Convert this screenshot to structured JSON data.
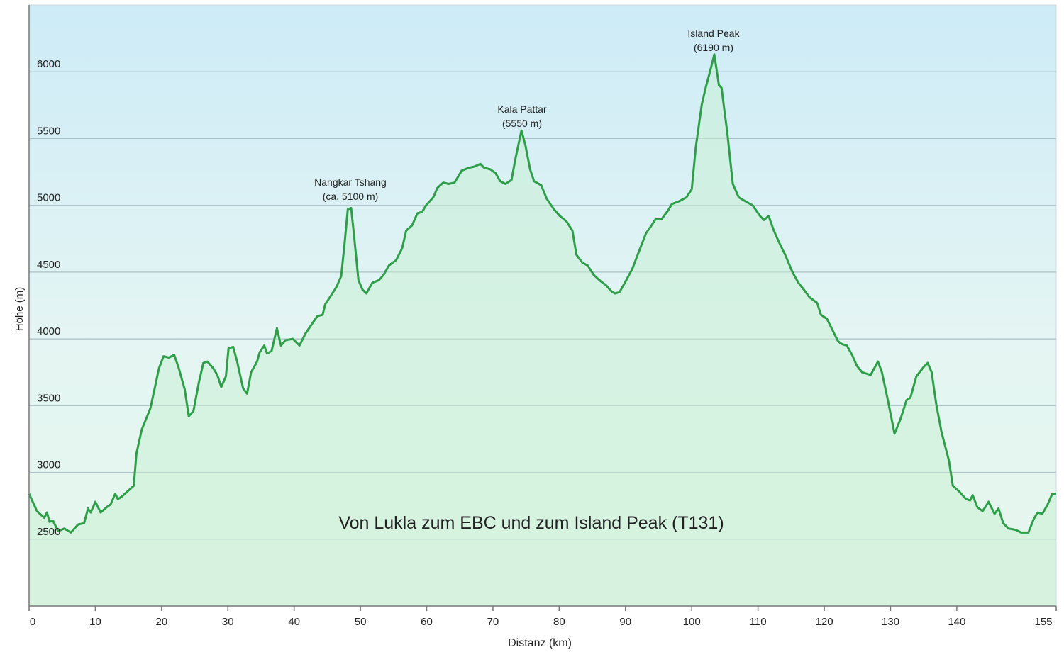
{
  "chart_data": {
    "type": "area",
    "title": "Von Lukla zum EBC und zum Island Peak (T131)",
    "x_label": "Distanz  (km)",
    "y_label": "Höhe (m)",
    "annotations": [
      [
        "Nangkar Tshang",
        "(ca. 5100 m)"
      ],
      [
        "Kala Pattar",
        "(5550 m)"
      ],
      [
        "Island Peak",
        "(6190 m)"
      ]
    ],
    "color": "#2e9e48",
    "fill_color": "#c8efd2",
    "grid": true,
    "xlim": [
      0,
      155
    ],
    "xticks": [
      0,
      10,
      20,
      30,
      40,
      50,
      60,
      70,
      80,
      90,
      100,
      110,
      120,
      130,
      140,
      155
    ],
    "ylim": [
      2000,
      6500
    ],
    "yticks": [
      2500,
      3000,
      3500,
      4000,
      4500,
      5000,
      5500,
      6000
    ],
    "x": [
      0,
      1.2,
      2.3,
      2.7,
      3.1,
      3.6,
      4.4,
      5.3,
      6.3,
      7.4,
      8.3,
      8.9,
      9.3,
      10,
      10.8,
      11.7,
      12.3,
      13,
      13.4,
      14,
      14.9,
      15.8,
      16.2,
      17,
      18.3,
      19,
      19.6,
      20.3,
      21.1,
      21.9,
      22.6,
      23.5,
      24.1,
      24.8,
      25.6,
      26.3,
      26.9,
      27.8,
      28.4,
      29,
      29.7,
      30.1,
      30.8,
      31.4,
      32.3,
      32.9,
      33.5,
      34.4,
      34.8,
      35.5,
      35.9,
      36.6,
      37.4,
      38,
      38.7,
      39.8,
      40.8,
      41.7,
      42.8,
      43.5,
      44.3,
      44.7,
      45.5,
      46.4,
      47.1,
      47.6,
      48.1,
      48.6,
      49,
      49.7,
      50.3,
      50.9,
      51.8,
      52.8,
      53.5,
      54.3,
      55.4,
      56.3,
      56.9,
      57.8,
      58.6,
      59.3,
      59.9,
      61,
      61.6,
      62.5,
      63.3,
      64.2,
      65.3,
      66.3,
      67.2,
      68.1,
      68.7,
      69.6,
      70.4,
      71.1,
      71.9,
      72.8,
      73.4,
      74.3,
      74.9,
      75.6,
      76.2,
      77.3,
      78.1,
      79.2,
      80.1,
      81.1,
      82,
      82.6,
      83.5,
      84.3,
      85.2,
      86.3,
      87.1,
      87.8,
      88.4,
      89.1,
      89.9,
      91,
      92,
      93.1,
      93.8,
      94.6,
      95.5,
      96.4,
      97,
      98.1,
      99.2,
      100,
      100.6,
      101.5,
      102.1,
      102.8,
      103.4,
      104.1,
      104.5,
      105.4,
      106.2,
      107.1,
      108.1,
      109.2,
      110.3,
      110.9,
      111.6,
      112.4,
      113.3,
      114.1,
      115.2,
      116.1,
      116.9,
      117.8,
      118.9,
      119.5,
      120.4,
      121.2,
      122.1,
      122.7,
      123.4,
      124.2,
      124.9,
      125.7,
      127,
      128.1,
      128.7,
      129.6,
      130.6,
      131.5,
      132.4,
      133,
      133.9,
      135,
      135.6,
      136.2,
      136.9,
      137.7,
      138.8,
      139.4,
      140.3,
      141.4,
      142,
      142.4,
      143.1,
      143.9,
      144.8,
      145.7,
      146.3,
      147,
      147.8,
      148.9,
      149.7,
      150.8,
      151.6,
      152.2,
      152.9,
      153.7,
      154.4,
      155
    ],
    "values": [
      2840,
      2710,
      2660,
      2700,
      2630,
      2640,
      2560,
      2580,
      2550,
      2610,
      2620,
      2730,
      2700,
      2780,
      2700,
      2740,
      2760,
      2840,
      2800,
      2820,
      2860,
      2900,
      3140,
      3320,
      3480,
      3640,
      3780,
      3870,
      3860,
      3880,
      3780,
      3620,
      3420,
      3460,
      3670,
      3820,
      3830,
      3780,
      3730,
      3640,
      3720,
      3930,
      3940,
      3830,
      3630,
      3590,
      3750,
      3830,
      3900,
      3950,
      3890,
      3910,
      4080,
      3950,
      3990,
      4000,
      3950,
      4040,
      4120,
      4170,
      4180,
      4260,
      4320,
      4390,
      4470,
      4710,
      4970,
      4980,
      4790,
      4440,
      4370,
      4340,
      4420,
      4440,
      4480,
      4550,
      4590,
      4680,
      4810,
      4850,
      4940,
      4950,
      5000,
      5060,
      5130,
      5170,
      5160,
      5170,
      5260,
      5280,
      5290,
      5310,
      5280,
      5270,
      5240,
      5180,
      5160,
      5190,
      5350,
      5560,
      5450,
      5270,
      5180,
      5150,
      5050,
      4970,
      4920,
      4880,
      4810,
      4630,
      4570,
      4550,
      4480,
      4430,
      4400,
      4360,
      4340,
      4350,
      4420,
      4520,
      4650,
      4790,
      4840,
      4900,
      4900,
      4960,
      5010,
      5030,
      5060,
      5120,
      5430,
      5750,
      5880,
      6010,
      6130,
      5900,
      5880,
      5530,
      5160,
      5060,
      5030,
      5000,
      4920,
      4890,
      4920,
      4810,
      4710,
      4630,
      4500,
      4420,
      4370,
      4310,
      4270,
      4180,
      4150,
      4070,
      3980,
      3960,
      3950,
      3880,
      3800,
      3750,
      3730,
      3830,
      3750,
      3540,
      3290,
      3400,
      3540,
      3560,
      3720,
      3790,
      3820,
      3750,
      3510,
      3300,
      3090,
      2900,
      2860,
      2800,
      2790,
      2830,
      2740,
      2710,
      2780,
      2690,
      2730,
      2620,
      2580,
      2570,
      2550,
      2550,
      2650,
      2700,
      2690,
      2760,
      2840,
      2840
    ]
  }
}
